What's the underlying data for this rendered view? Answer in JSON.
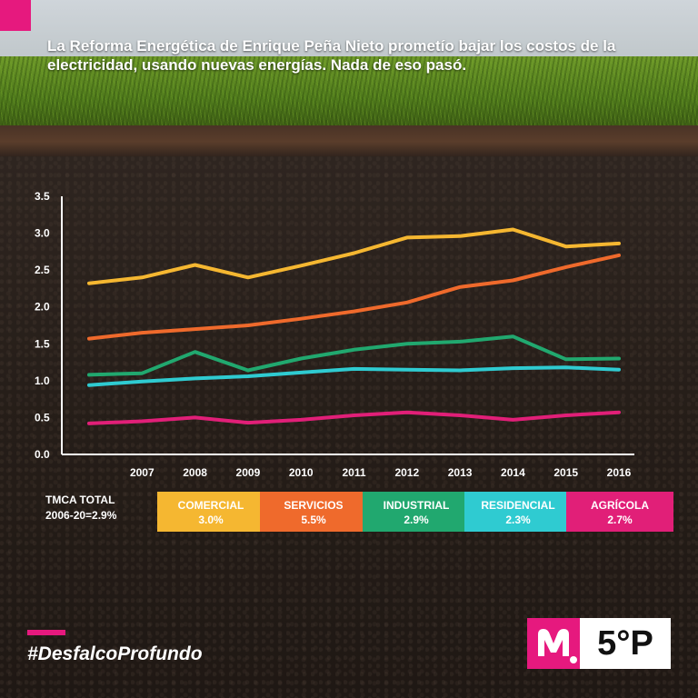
{
  "headline": "La Reforma Energética de Enrique Peña Nieto prometío bajar los costos de la electricidad, usando nuevas energías. Nada de eso pasó.",
  "colors": {
    "accent": "#e6197e",
    "comercial": "#f5b731",
    "servicios": "#ef6a2c",
    "industrial": "#21a86f",
    "residencial": "#2fcbd1",
    "agricola": "#e11f78"
  },
  "legend": {
    "total_line1": "TMCA TOTAL",
    "total_line2": "2006-20=2.9%",
    "items": [
      {
        "name": "COMERCIAL",
        "rate": "3.0%",
        "color": "#f5b731"
      },
      {
        "name": "SERVICIOS",
        "rate": "5.5%",
        "color": "#ef6a2c"
      },
      {
        "name": "INDUSTRIAL",
        "rate": "2.9%",
        "color": "#21a86f"
      },
      {
        "name": "RESIDENCIAL",
        "rate": "2.3%",
        "color": "#2fcbd1"
      },
      {
        "name": "AGRÍCOLA",
        "rate": "2.7%",
        "color": "#e11f78"
      }
    ]
  },
  "hashtag": "#DesfalcoProfundo",
  "logo": {
    "left_icon": "m-pin-logo-icon",
    "right_text": "5°P"
  },
  "chart_data": {
    "type": "line",
    "x": [
      2006,
      2007,
      2008,
      2009,
      2010,
      2011,
      2012,
      2013,
      2014,
      2015,
      2016
    ],
    "x_tick_labels": [
      "2007",
      "2008",
      "2009",
      "2010",
      "2011",
      "2012",
      "2013",
      "2014",
      "2015",
      "2016"
    ],
    "y_ticks": [
      "0.0",
      "0.5",
      "1.0",
      "1.5",
      "2.0",
      "2.5",
      "3.0",
      "3.5"
    ],
    "ylim": [
      0,
      3.5
    ],
    "grid": false,
    "series": [
      {
        "name": "COMERCIAL",
        "color": "#f5b731",
        "values": [
          2.32,
          2.4,
          2.57,
          2.4,
          2.56,
          2.73,
          2.94,
          2.96,
          3.05,
          2.82,
          2.86
        ]
      },
      {
        "name": "SERVICIOS",
        "color": "#ef6a2c",
        "values": [
          1.57,
          1.65,
          1.7,
          1.75,
          1.84,
          1.94,
          2.06,
          2.27,
          2.36,
          2.54,
          2.7
        ]
      },
      {
        "name": "INDUSTRIAL",
        "color": "#21a86f",
        "values": [
          1.08,
          1.1,
          1.39,
          1.14,
          1.3,
          1.42,
          1.5,
          1.53,
          1.6,
          1.29,
          1.3
        ]
      },
      {
        "name": "RESIDENCIAL",
        "color": "#2fcbd1",
        "values": [
          0.94,
          0.99,
          1.03,
          1.06,
          1.11,
          1.16,
          1.15,
          1.14,
          1.17,
          1.18,
          1.15
        ]
      },
      {
        "name": "AGRÍCOLA",
        "color": "#e11f78",
        "values": [
          0.42,
          0.45,
          0.5,
          0.43,
          0.47,
          0.53,
          0.57,
          0.53,
          0.47,
          0.53,
          0.57
        ]
      }
    ]
  }
}
